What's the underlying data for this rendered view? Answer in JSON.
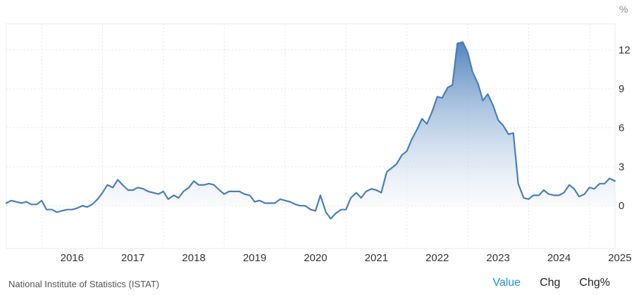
{
  "chart_data": {
    "type": "area",
    "unit": "%",
    "x_tick_labels": [
      "2016",
      "2017",
      "2018",
      "2019",
      "2020",
      "2021",
      "2022",
      "2023",
      "2024",
      "2025"
    ],
    "y_tick_labels": [
      "12",
      "9",
      "6",
      "3",
      "0"
    ],
    "ylim": [
      -3.3,
      14
    ],
    "xlim": [
      2015.42,
      2025.42
    ],
    "grid": true,
    "colors": {
      "line": "#4a7ebb",
      "fill_top": "#4a7ebb",
      "fill_bottom": "#ffffff"
    },
    "series": [
      {
        "points": [
          [
            2015.42,
            0.2
          ],
          [
            2015.5,
            0.4
          ],
          [
            2015.58,
            0.3
          ],
          [
            2015.67,
            0.2
          ],
          [
            2015.75,
            0.3
          ],
          [
            2015.83,
            0.1
          ],
          [
            2015.92,
            0.1
          ],
          [
            2016.0,
            0.4
          ],
          [
            2016.08,
            -0.3
          ],
          [
            2016.17,
            -0.3
          ],
          [
            2016.25,
            -0.5
          ],
          [
            2016.33,
            -0.4
          ],
          [
            2016.42,
            -0.3
          ],
          [
            2016.5,
            -0.3
          ],
          [
            2016.58,
            -0.2
          ],
          [
            2016.67,
            0.0
          ],
          [
            2016.75,
            -0.1
          ],
          [
            2016.83,
            0.1
          ],
          [
            2016.92,
            0.5
          ],
          [
            2017.0,
            1.0
          ],
          [
            2017.08,
            1.6
          ],
          [
            2017.17,
            1.4
          ],
          [
            2017.25,
            2.0
          ],
          [
            2017.33,
            1.6
          ],
          [
            2017.42,
            1.2
          ],
          [
            2017.5,
            1.2
          ],
          [
            2017.58,
            1.4
          ],
          [
            2017.67,
            1.3
          ],
          [
            2017.75,
            1.1
          ],
          [
            2017.83,
            1.0
          ],
          [
            2017.92,
            0.9
          ],
          [
            2018.0,
            1.1
          ],
          [
            2018.08,
            0.5
          ],
          [
            2018.17,
            0.8
          ],
          [
            2018.25,
            0.6
          ],
          [
            2018.33,
            1.1
          ],
          [
            2018.42,
            1.4
          ],
          [
            2018.5,
            1.9
          ],
          [
            2018.58,
            1.6
          ],
          [
            2018.67,
            1.6
          ],
          [
            2018.75,
            1.7
          ],
          [
            2018.83,
            1.6
          ],
          [
            2018.92,
            1.2
          ],
          [
            2019.0,
            0.9
          ],
          [
            2019.08,
            1.1
          ],
          [
            2019.17,
            1.1
          ],
          [
            2019.25,
            1.1
          ],
          [
            2019.33,
            0.9
          ],
          [
            2019.42,
            0.8
          ],
          [
            2019.5,
            0.3
          ],
          [
            2019.58,
            0.4
          ],
          [
            2019.67,
            0.2
          ],
          [
            2019.75,
            0.2
          ],
          [
            2019.83,
            0.2
          ],
          [
            2019.92,
            0.5
          ],
          [
            2020.0,
            0.4
          ],
          [
            2020.08,
            0.3
          ],
          [
            2020.17,
            0.1
          ],
          [
            2020.25,
            0.0
          ],
          [
            2020.33,
            0.0
          ],
          [
            2020.42,
            -0.3
          ],
          [
            2020.5,
            -0.4
          ],
          [
            2020.58,
            0.8
          ],
          [
            2020.67,
            -0.5
          ],
          [
            2020.75,
            -1.0
          ],
          [
            2020.83,
            -0.6
          ],
          [
            2020.92,
            -0.3
          ],
          [
            2021.0,
            -0.3
          ],
          [
            2021.08,
            0.6
          ],
          [
            2021.17,
            1.0
          ],
          [
            2021.25,
            0.6
          ],
          [
            2021.33,
            1.1
          ],
          [
            2021.42,
            1.3
          ],
          [
            2021.5,
            1.2
          ],
          [
            2021.58,
            1.0
          ],
          [
            2021.67,
            2.6
          ],
          [
            2021.75,
            2.9
          ],
          [
            2021.83,
            3.2
          ],
          [
            2021.92,
            3.9
          ],
          [
            2022.0,
            4.2
          ],
          [
            2022.08,
            5.1
          ],
          [
            2022.17,
            5.9
          ],
          [
            2022.25,
            6.7
          ],
          [
            2022.33,
            6.3
          ],
          [
            2022.42,
            7.3
          ],
          [
            2022.5,
            8.4
          ],
          [
            2022.58,
            8.3
          ],
          [
            2022.67,
            9.1
          ],
          [
            2022.75,
            9.3
          ],
          [
            2022.83,
            12.5
          ],
          [
            2022.92,
            12.6
          ],
          [
            2023.0,
            11.8
          ],
          [
            2023.08,
            10.3
          ],
          [
            2023.17,
            9.4
          ],
          [
            2023.25,
            8.1
          ],
          [
            2023.33,
            8.6
          ],
          [
            2023.42,
            7.7
          ],
          [
            2023.5,
            6.6
          ],
          [
            2023.58,
            6.2
          ],
          [
            2023.67,
            5.5
          ],
          [
            2023.75,
            5.6
          ],
          [
            2023.83,
            1.7
          ],
          [
            2023.92,
            0.6
          ],
          [
            2024.0,
            0.5
          ],
          [
            2024.08,
            0.8
          ],
          [
            2024.17,
            0.8
          ],
          [
            2024.25,
            1.2
          ],
          [
            2024.33,
            0.9
          ],
          [
            2024.42,
            0.8
          ],
          [
            2024.5,
            0.8
          ],
          [
            2024.58,
            1.0
          ],
          [
            2024.67,
            1.6
          ],
          [
            2024.75,
            1.3
          ],
          [
            2024.83,
            0.7
          ],
          [
            2024.92,
            0.9
          ],
          [
            2025.0,
            1.4
          ],
          [
            2025.08,
            1.3
          ],
          [
            2025.17,
            1.7
          ],
          [
            2025.25,
            1.7
          ],
          [
            2025.33,
            2.1
          ],
          [
            2025.42,
            1.9
          ]
        ]
      }
    ]
  },
  "footer": {
    "source": "National Institute of Statistics (ISTAT)",
    "tabs": {
      "value": "Value",
      "chg": "Chg",
      "chg_pct": "Chg%"
    }
  }
}
